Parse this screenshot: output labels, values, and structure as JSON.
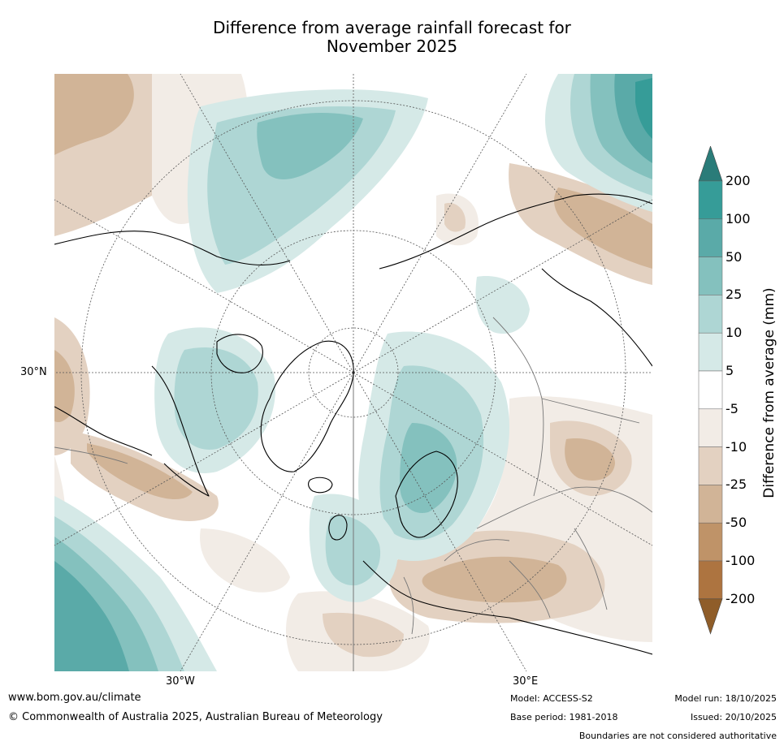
{
  "title_line1": "Difference from average rainfall forecast for",
  "title_line2": "November 2025",
  "map": {
    "latitude_label": "30°N",
    "longitude_labels": {
      "west": "30°W",
      "east": "30°E"
    },
    "land_outline_color": "#000000",
    "border_color": "#777777",
    "graticule_color": "#555555"
  },
  "colorbar": {
    "label": "Difference from average (mm)",
    "ticks": [
      "200",
      "100",
      "50",
      "25",
      "10",
      "5",
      "-5",
      "-10",
      "-25",
      "-50",
      "-100",
      "-200"
    ],
    "colors": {
      "over": "#2a7c79",
      "bands": [
        "#369c98",
        "#5aaaa8",
        "#84c1be",
        "#aed6d4",
        "#d5e9e7",
        "#ffffff",
        "#f2ece6",
        "#e3d1c1",
        "#d1b497",
        "#bf9368",
        "#ad7440"
      ],
      "under": "#8f5d29"
    }
  },
  "footer": {
    "website": "www.bom.gov.au/climate",
    "copyright": "© Commonwealth of Australia 2025, Australian Bureau of Meteorology",
    "model": "Model: ACCESS-S2",
    "base_period": "Base period: 1981-2018",
    "model_run": "Model run: 18/10/2025",
    "issued": "Issued: 20/10/2025",
    "disclaimer": "Boundaries are not considered authoritative"
  }
}
